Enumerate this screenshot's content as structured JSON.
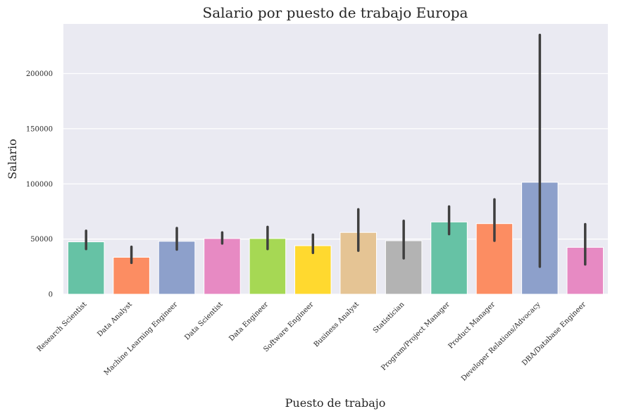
{
  "chart_data": {
    "type": "bar",
    "title": "Salario por puesto de trabajo Europa",
    "xlabel": "Puesto de trabajo",
    "ylabel": "Salario",
    "ylim": [
      0,
      245000
    ],
    "yticks": [
      0,
      50000,
      100000,
      150000,
      200000
    ],
    "ytick_labels": [
      "0",
      "50000",
      "100000",
      "150000",
      "200000"
    ],
    "grid": true,
    "background": "#eaeaf2",
    "categories": [
      "Research Scientist",
      "Data Analyst",
      "Machine Learning Engineer",
      "Data Scientist",
      "Data Engineer",
      "Software Engineer",
      "Business Analyst",
      "Statistician",
      "Program/Project Manager",
      "Product Manager",
      "Developer Relations/Advocacy",
      "DBA/Database Engineer"
    ],
    "values": [
      47500,
      33500,
      48000,
      50500,
      50500,
      44000,
      56000,
      48500,
      65500,
      64000,
      101500,
      42500
    ],
    "error_low": [
      41000,
      28500,
      40500,
      46000,
      41000,
      37500,
      39500,
      32500,
      54500,
      48500,
      25000,
      27000
    ],
    "error_high": [
      57500,
      43000,
      60000,
      56000,
      61000,
      54000,
      77000,
      66500,
      79500,
      86000,
      235000,
      63500
    ],
    "colors": [
      "#66c2a5",
      "#fc8d62",
      "#8da0cb",
      "#e78ac3",
      "#a6d854",
      "#ffd92f",
      "#e5c494",
      "#b3b3b3",
      "#66c2a5",
      "#fc8d62",
      "#8da0cb",
      "#e78ac3"
    ],
    "error_color": "#3f3f3f"
  }
}
